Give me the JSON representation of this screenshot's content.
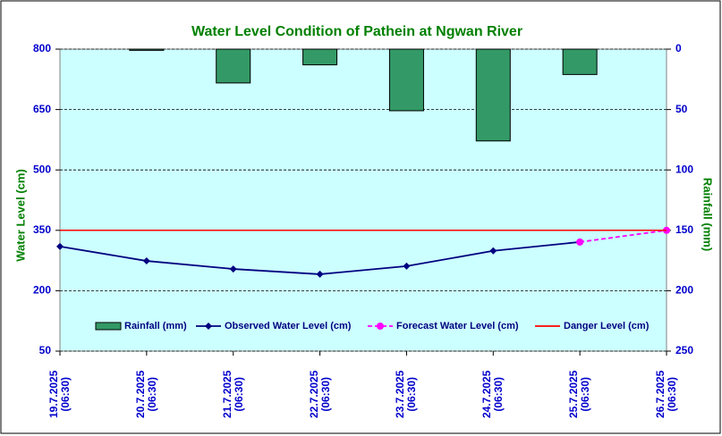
{
  "chart_data": {
    "type": "combo",
    "title": "Water Level Condition of Pathein  at Ngwan River",
    "y_label": "Water Level (cm)",
    "y2_label": "Rainfall (mm)",
    "categories": [
      "19.7.2025\n(06:30)",
      "20.7.2025\n(06:30)",
      "21.7.2025\n(06:30)",
      "22.7.2025\n(06:30)",
      "23.7.2025\n(06:30)",
      "24.7.2025\n(06:30)",
      "25.7.2025\n(06:30)",
      "26.7.2025\n(06:30)"
    ],
    "ylim": [
      50,
      800
    ],
    "yticks": [
      50,
      200,
      350,
      500,
      650,
      800
    ],
    "y2lim": [
      0,
      250
    ],
    "y2ticks": [
      0,
      50,
      100,
      150,
      200,
      250
    ],
    "y2_inverted": true,
    "grid": true,
    "series": [
      {
        "name": "Rainfall (mm)",
        "type": "bar",
        "axis": "y2",
        "color": "#339966",
        "values": [
          null,
          1,
          28,
          13,
          51,
          76,
          21,
          null
        ]
      },
      {
        "name": "Observed Water Level (cm)",
        "type": "line",
        "color": "#000080",
        "marker": "diamond",
        "values": [
          310,
          274,
          254,
          241,
          261,
          299,
          321,
          null
        ]
      },
      {
        "name": "Forecast Water Level (cm)",
        "type": "line",
        "color": "#ff00ff",
        "marker": "circle",
        "dashed": true,
        "values": [
          null,
          null,
          null,
          null,
          null,
          null,
          321,
          350
        ]
      },
      {
        "name": "Danger Level (cm)",
        "type": "line",
        "color": "#ff0000",
        "values": [
          350,
          350,
          350,
          350,
          350,
          350,
          350,
          350
        ]
      }
    ]
  }
}
